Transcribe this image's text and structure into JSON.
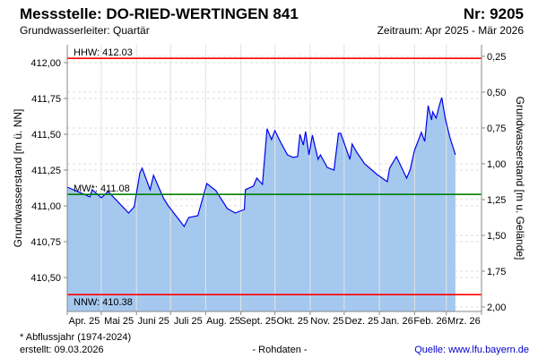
{
  "header": {
    "title": "Messstelle: DO-RIED-WERTINGEN 841",
    "number": "Nr: 9205",
    "aquifer": "Grundwasserleiter: Quartär",
    "period": "Zeitraum: Apr 2025 - Mär 2026"
  },
  "footer": {
    "note": "* Abflussjahr (1974-2024)",
    "created": "erstellt:  09.03.2026",
    "raw": "- Rohdaten -",
    "source": "Quelle: www.lfu.bayern.de"
  },
  "colors": {
    "line": "#0000ee",
    "fill": "#a5c8ee",
    "hhw": "#ff0000",
    "nnw": "#ff0000",
    "mw": "#008000",
    "source": "#0000cc"
  },
  "chart_data": {
    "type": "area",
    "ylabel": "Grundwasserstand [m ü. NN]",
    "y2label": "Grundwasserstand [m u. Gelände]",
    "ylim": [
      410.2625,
      412.125
    ],
    "yticks": [
      410.5,
      410.75,
      411.0,
      411.25,
      411.5,
      411.75,
      412.0
    ],
    "ytick_labels": [
      "410,50",
      "410,75",
      "411,00",
      "411,25",
      "411,50",
      "411,75",
      "412,00"
    ],
    "ground_level": 412.294,
    "y2ticks": [
      0.25,
      0.5,
      0.75,
      1.0,
      1.25,
      1.5,
      1.75,
      2.0
    ],
    "y2tick_labels": [
      "0,25",
      "0,50",
      "0,75",
      "1,00",
      "1,25",
      "1,50",
      "1,75",
      "2,00"
    ],
    "x_unit": "days since 01.04.2025",
    "xlim": [
      0,
      365
    ],
    "month_starts": [
      0,
      30,
      61,
      91,
      122,
      153,
      183,
      214,
      244,
      275,
      306,
      334,
      365
    ],
    "month_labels": [
      "Apr. 25",
      "Mai 25",
      "Juni 25",
      "Juli 25",
      "Aug. 25",
      "Sept. 25",
      "Okt. 25",
      "Nov. 25",
      "Dez. 25",
      "Jan. 26",
      "Feb. 26",
      "Mrz. 26"
    ],
    "reference_lines": [
      {
        "label": "HHW: 412.03",
        "value": 412.03,
        "color": "#ff0000"
      },
      {
        "label": "MW*: 411.08",
        "value": 411.08,
        "color": "#008000"
      },
      {
        "label": "NNW: 410.38",
        "value": 410.38,
        "color": "#ff0000"
      }
    ],
    "series": [
      {
        "name": "Grundwasserstand",
        "points": [
          [
            0,
            411.131
          ],
          [
            20,
            411.063
          ],
          [
            22,
            411.113
          ],
          [
            30,
            411.056
          ],
          [
            36,
            411.1
          ],
          [
            54,
            410.95
          ],
          [
            59,
            410.994
          ],
          [
            64,
            411.231
          ],
          [
            66,
            411.263
          ],
          [
            73,
            411.113
          ],
          [
            76,
            411.213
          ],
          [
            85,
            411.05
          ],
          [
            89,
            411.0
          ],
          [
            103,
            410.856
          ],
          [
            107,
            410.919
          ],
          [
            115,
            410.931
          ],
          [
            123,
            411.156
          ],
          [
            131,
            411.106
          ],
          [
            141,
            410.981
          ],
          [
            148,
            410.95
          ],
          [
            156,
            410.975
          ],
          [
            157,
            411.113
          ],
          [
            164,
            411.138
          ],
          [
            167,
            411.194
          ],
          [
            172,
            411.15
          ],
          [
            176,
            411.538
          ],
          [
            180,
            411.463
          ],
          [
            183,
            411.525
          ],
          [
            188,
            411.444
          ],
          [
            194,
            411.356
          ],
          [
            199,
            411.338
          ],
          [
            203,
            411.344
          ],
          [
            205,
            411.5
          ],
          [
            208,
            411.425
          ],
          [
            210,
            411.519
          ],
          [
            213,
            411.356
          ],
          [
            216,
            411.494
          ],
          [
            221,
            411.325
          ],
          [
            223,
            411.356
          ],
          [
            229,
            411.269
          ],
          [
            235,
            411.25
          ],
          [
            239,
            411.506
          ],
          [
            241,
            411.506
          ],
          [
            249,
            411.325
          ],
          [
            251,
            411.431
          ],
          [
            255,
            411.375
          ],
          [
            262,
            411.294
          ],
          [
            273,
            411.219
          ],
          [
            282,
            411.169
          ],
          [
            284,
            411.263
          ],
          [
            290,
            411.344
          ],
          [
            299,
            411.194
          ],
          [
            302,
            411.25
          ],
          [
            306,
            411.388
          ],
          [
            312,
            411.513
          ],
          [
            315,
            411.45
          ],
          [
            318,
            411.7
          ],
          [
            321,
            411.6
          ],
          [
            322,
            411.656
          ],
          [
            325,
            411.613
          ],
          [
            328,
            411.706
          ],
          [
            330,
            411.756
          ],
          [
            333,
            411.613
          ],
          [
            337,
            411.481
          ],
          [
            342,
            411.356
          ]
        ]
      }
    ]
  }
}
